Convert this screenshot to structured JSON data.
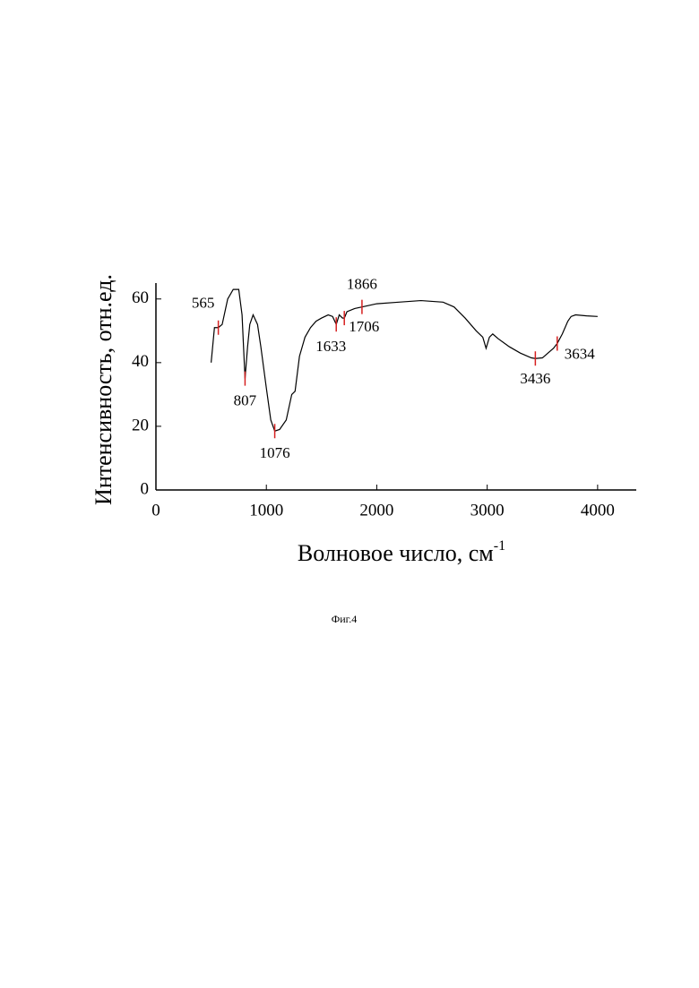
{
  "chart_data": {
    "type": "line",
    "xlabel": "Волновое число, см",
    "xlabel_superscript": "-1",
    "ylabel": "Интенсивность, отн.ед.",
    "caption": "Фиг.4",
    "xlim": [
      0,
      4350
    ],
    "ylim": [
      0,
      65
    ],
    "xticks": [
      0,
      1000,
      2000,
      3000,
      4000
    ],
    "yticks": [
      0,
      20,
      40,
      60
    ],
    "series": [
      {
        "color": "#000000",
        "x": [
          500,
          530,
          565,
          600,
          650,
          700,
          750,
          780,
          800,
          807,
          830,
          850,
          880,
          920,
          950,
          1000,
          1040,
          1076,
          1120,
          1180,
          1230,
          1260,
          1300,
          1350,
          1400,
          1450,
          1500,
          1560,
          1600,
          1633,
          1660,
          1690,
          1706,
          1730,
          1800,
          1866,
          2000,
          2200,
          2400,
          2600,
          2700,
          2800,
          2900,
          2960,
          2990,
          3020,
          3050,
          3100,
          3200,
          3300,
          3400,
          3436,
          3500,
          3550,
          3600,
          3634,
          3680,
          3730,
          3760,
          3800,
          3900,
          4000
        ],
        "values": [
          40,
          51,
          51,
          52,
          60,
          63,
          63,
          55,
          40,
          35,
          45,
          52,
          55,
          52,
          45,
          32,
          22,
          18.5,
          19,
          22,
          30,
          31,
          42,
          48,
          51,
          53,
          54,
          55,
          54.5,
          52,
          55,
          54,
          54,
          56,
          57,
          57.5,
          58.5,
          59,
          59.5,
          59,
          57.5,
          54,
          50,
          48,
          44.5,
          48,
          49,
          47.5,
          45,
          43,
          41.5,
          41.3,
          41.5,
          43,
          44.5,
          46,
          49,
          53,
          54.5,
          55,
          54.7,
          54.5
        ]
      }
    ],
    "peak_color": "#d62020",
    "peaks": [
      {
        "x": 565,
        "y": 51
      },
      {
        "x": 807,
        "y": 35
      },
      {
        "x": 1076,
        "y": 18.5
      },
      {
        "x": 1633,
        "y": 52
      },
      {
        "x": 1706,
        "y": 54
      },
      {
        "x": 1866,
        "y": 57.5
      },
      {
        "x": 3436,
        "y": 41.3
      },
      {
        "x": 3634,
        "y": 46
      }
    ]
  }
}
